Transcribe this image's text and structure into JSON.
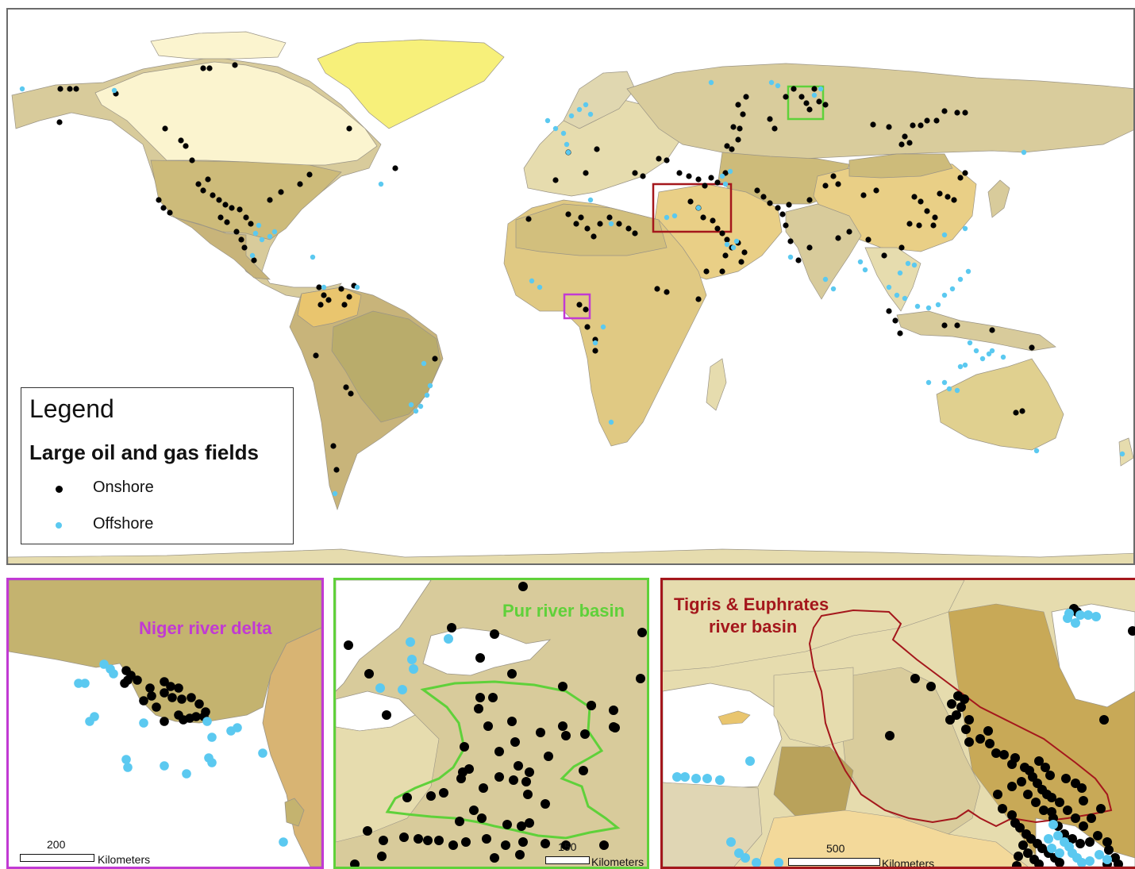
{
  "legend": {
    "title": "Legend",
    "subtitle": "Large oil and gas fields",
    "items": [
      {
        "label": "Onshore",
        "color": "#000000"
      },
      {
        "label": "Offshore",
        "color": "#5bc9f0"
      }
    ]
  },
  "insets": {
    "niger": {
      "title": "Niger river delta",
      "scale_value": "200",
      "scale_unit": "Kilometers",
      "color": "#c13ad3"
    },
    "pur": {
      "title": "Pur river basin",
      "scale_value": "150",
      "scale_unit": "Kilometers",
      "color": "#5fd13a"
    },
    "tigris": {
      "title_line1": "Tigris & Euphrates",
      "title_line2": "river basin",
      "scale_value": "500",
      "scale_unit": "Kilometers",
      "color": "#a4171c"
    }
  },
  "colors": {
    "ocean": "#ffffff",
    "land_palette": [
      "#d8cb9b",
      "#e6dcae",
      "#f1e9c2",
      "#cdbb7a",
      "#e9cf86",
      "#f4e27f",
      "#fbf4cf",
      "#c8b47a",
      "#e0c07a",
      "#f3d99a"
    ],
    "greenland": "#f7f07a",
    "onshore": "#000000",
    "offshore": "#5bc9f0"
  }
}
